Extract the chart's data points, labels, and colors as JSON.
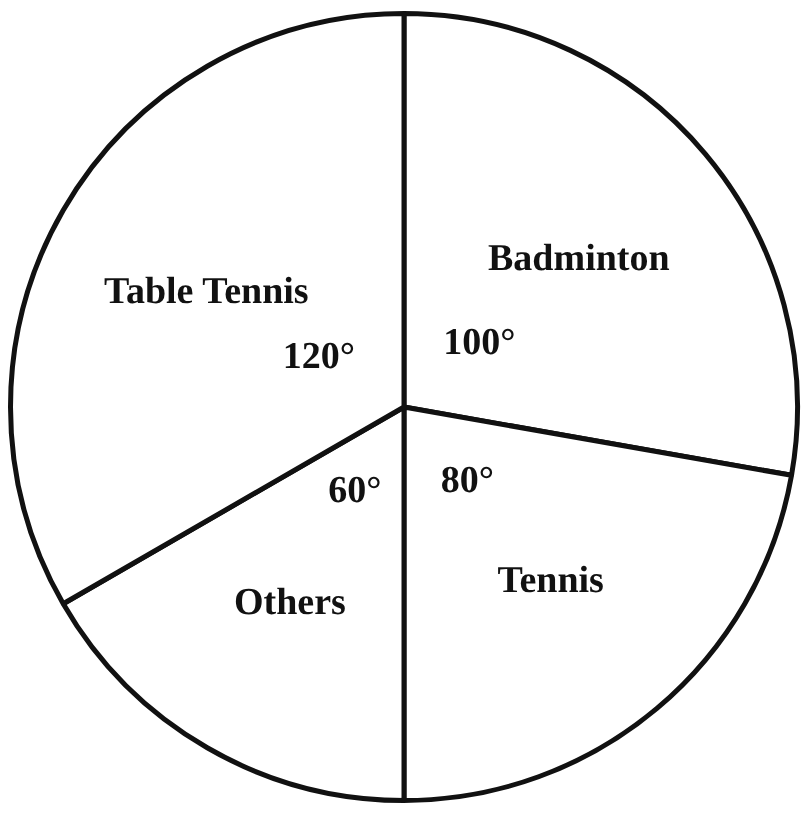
{
  "chart_data": {
    "type": "pie",
    "categories": [
      "Badminton",
      "Tennis",
      "Others",
      "Table Tennis"
    ],
    "values": [
      100,
      80,
      60,
      120
    ],
    "value_labels": [
      "100°",
      "80°",
      "60°",
      "120°"
    ],
    "colors": [
      "#ffffff",
      "#ffffff",
      "#ffffff",
      "#ffffff"
    ],
    "legend": false
  }
}
